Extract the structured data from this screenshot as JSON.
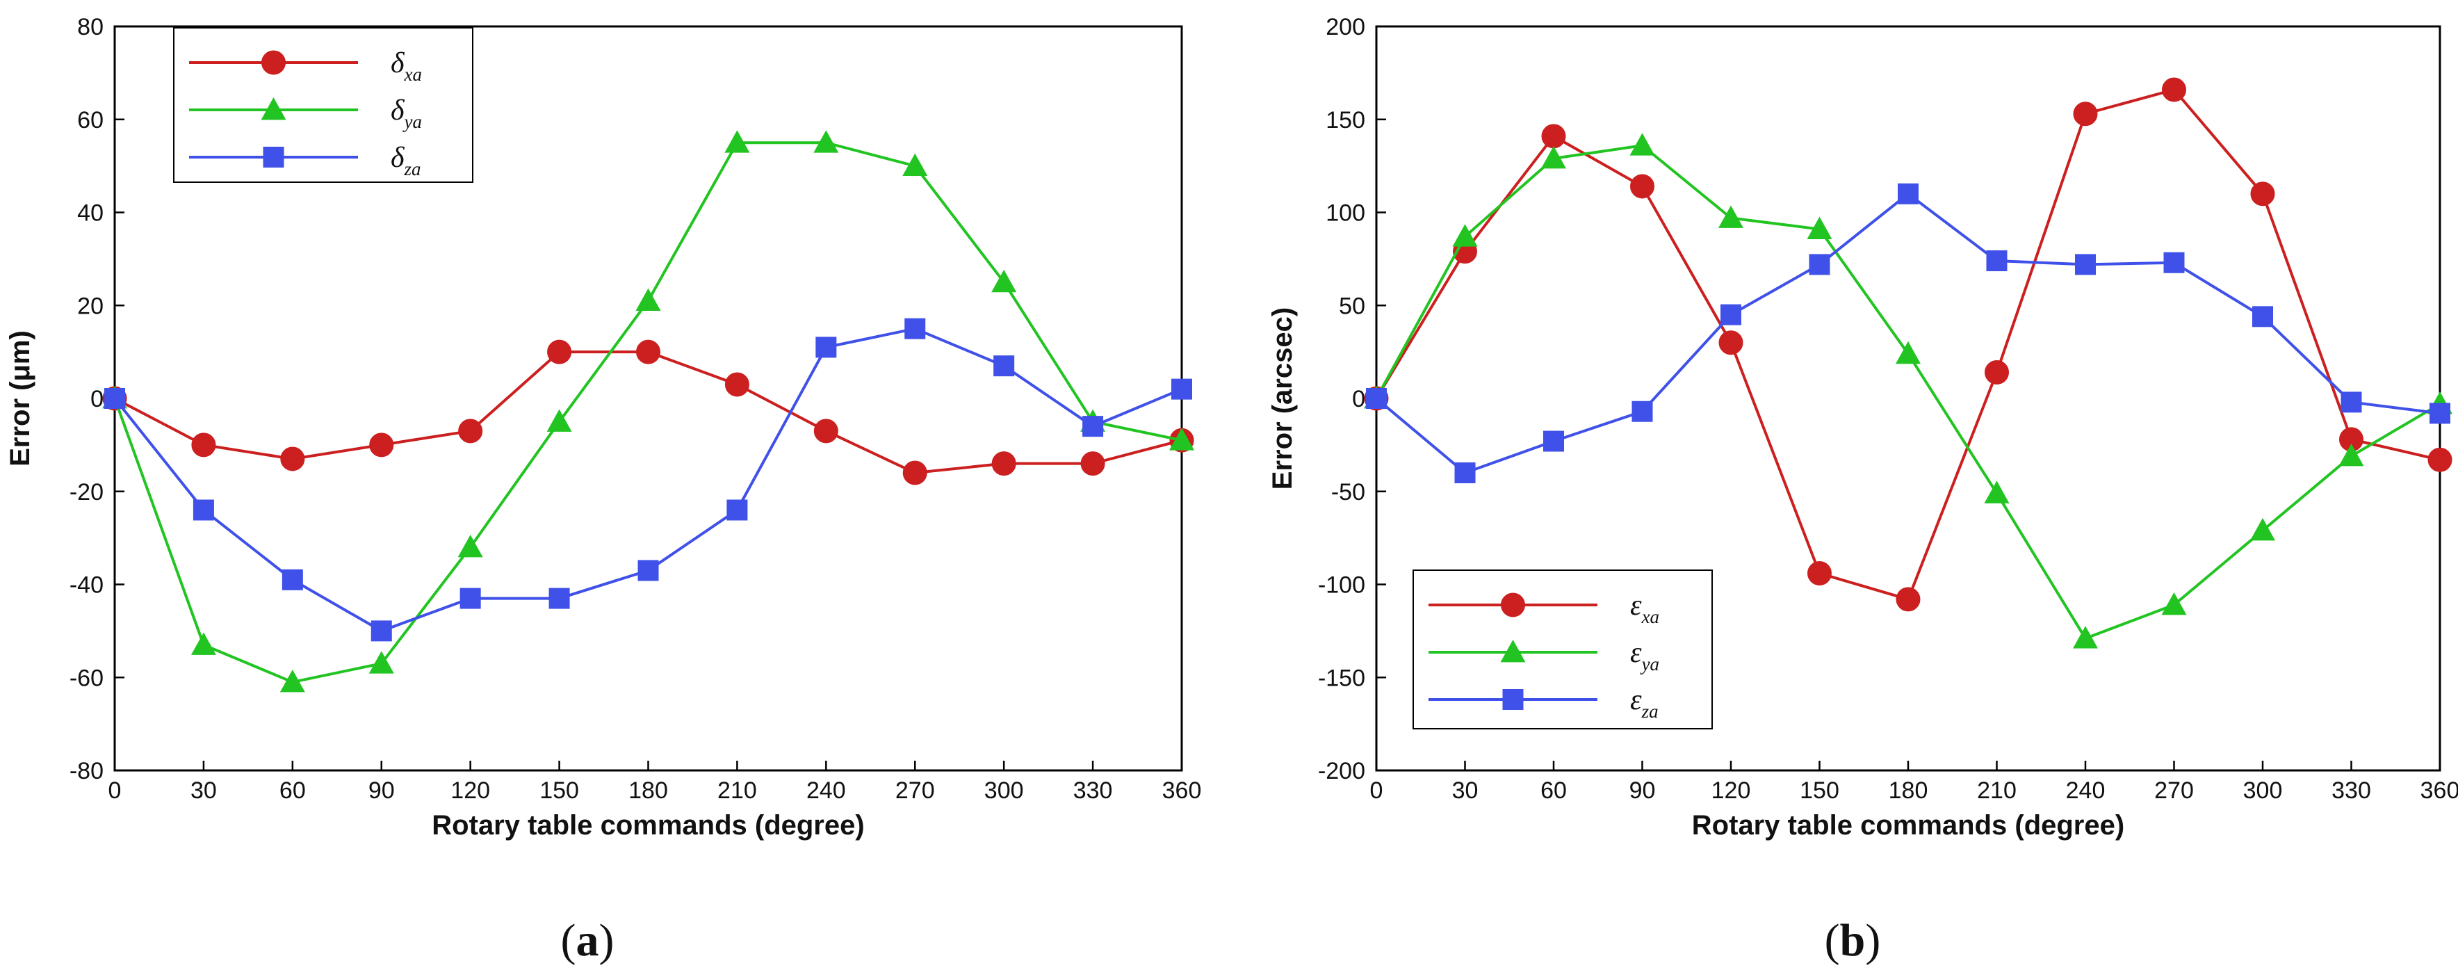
{
  "chart_data": [
    {
      "type": "line",
      "panel_label": "a",
      "xlabel": "Rotary table commands (degree)",
      "ylabel": "Error (μm)",
      "xlim": [
        0,
        360
      ],
      "ylim": [
        -80,
        80
      ],
      "xticks": [
        0,
        30,
        60,
        90,
        120,
        150,
        180,
        210,
        240,
        270,
        300,
        330,
        360
      ],
      "yticks": [
        -80,
        -60,
        -40,
        -20,
        0,
        20,
        40,
        60,
        80
      ],
      "legend_position": "top-left",
      "x": [
        0,
        30,
        60,
        90,
        120,
        150,
        180,
        210,
        240,
        270,
        300,
        330,
        360
      ],
      "series": [
        {
          "name": "δ",
          "subscript": "xa",
          "color": "#cc1f1f",
          "marker": "circle",
          "values": [
            0,
            -10,
            -13,
            -10,
            -7,
            10,
            10,
            3,
            -7,
            -16,
            -14,
            -14,
            -9
          ]
        },
        {
          "name": "δ",
          "subscript": "ya",
          "color": "#22c422",
          "marker": "triangle",
          "values": [
            0,
            -53,
            -61,
            -57,
            -32,
            -5,
            21,
            55,
            55,
            50,
            25,
            -5,
            -9
          ]
        },
        {
          "name": "δ",
          "subscript": "za",
          "color": "#3f51e8",
          "marker": "square",
          "values": [
            0,
            -24,
            -39,
            -50,
            -43,
            -43,
            -37,
            -24,
            11,
            15,
            7,
            -6,
            2
          ]
        }
      ]
    },
    {
      "type": "line",
      "panel_label": "b",
      "xlabel": "Rotary table commands (degree)",
      "ylabel": "Error (arcsec)",
      "xlim": [
        0,
        360
      ],
      "ylim": [
        -200,
        200
      ],
      "xticks": [
        0,
        30,
        60,
        90,
        120,
        150,
        180,
        210,
        240,
        270,
        300,
        330,
        360
      ],
      "yticks": [
        -200,
        -150,
        -100,
        -50,
        0,
        50,
        100,
        150,
        200
      ],
      "legend_position": "bottom-left",
      "x": [
        0,
        30,
        60,
        90,
        120,
        150,
        180,
        210,
        240,
        270,
        300,
        330,
        360
      ],
      "series": [
        {
          "name": "ε",
          "subscript": "xa",
          "color": "#cc1f1f",
          "marker": "circle",
          "values": [
            0,
            79,
            141,
            114,
            30,
            -94,
            -108,
            14,
            153,
            166,
            110,
            -22,
            -33
          ]
        },
        {
          "name": "ε",
          "subscript": "ya",
          "color": "#22c422",
          "marker": "triangle",
          "values": [
            0,
            87,
            129,
            136,
            97,
            91,
            24,
            -51,
            -129,
            -111,
            -71,
            -31,
            -3
          ]
        },
        {
          "name": "ε",
          "subscript": "za",
          "color": "#3f51e8",
          "marker": "square",
          "values": [
            0,
            -40,
            -23,
            -7,
            45,
            72,
            110,
            74,
            72,
            73,
            44,
            -2,
            -8
          ]
        }
      ]
    }
  ]
}
